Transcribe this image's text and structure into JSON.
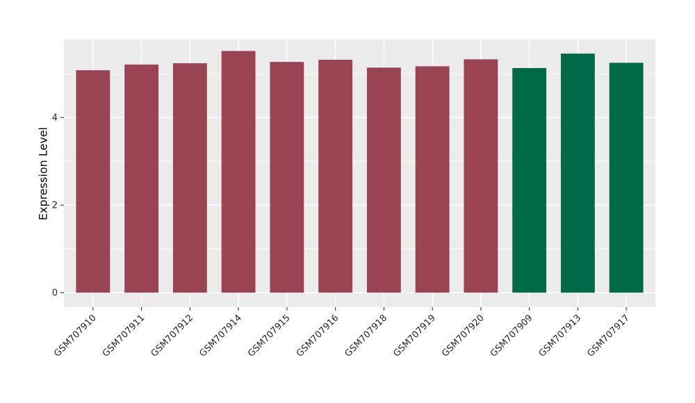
{
  "chart_data": {
    "type": "bar",
    "title": "",
    "xlabel": "",
    "ylabel": "Expression Level",
    "categories": [
      "GSM707910",
      "GSM707911",
      "GSM707912",
      "GSM707914",
      "GSM707915",
      "GSM707916",
      "GSM707918",
      "GSM707919",
      "GSM707920",
      "GSM707909",
      "GSM707913",
      "GSM707917"
    ],
    "values": [
      5.08,
      5.21,
      5.24,
      5.52,
      5.27,
      5.32,
      5.14,
      5.17,
      5.33,
      5.13,
      5.46,
      5.25
    ],
    "bar_colors": [
      "#9A4352",
      "#9A4352",
      "#9A4352",
      "#9A4352",
      "#9A4352",
      "#9A4352",
      "#9A4352",
      "#9A4352",
      "#9A4352",
      "#006948",
      "#006948",
      "#006948"
    ],
    "groups": [
      {
        "name": "red-group",
        "color": "#9A4352",
        "members": [
          "GSM707910",
          "GSM707911",
          "GSM707912",
          "GSM707914",
          "GSM707915",
          "GSM707916",
          "GSM707918",
          "GSM707919",
          "GSM707920"
        ]
      },
      {
        "name": "green-group",
        "color": "#006948",
        "members": [
          "GSM707909",
          "GSM707913",
          "GSM707917"
        ]
      }
    ],
    "y_ticks_major": [
      0,
      2,
      4
    ],
    "y_ticks_minor": [
      1,
      3,
      5
    ],
    "y_tick_labels": [
      "0",
      "2",
      "4"
    ],
    "ylim": [
      -0.33,
      5.78
    ],
    "bar_rel_width": 0.7,
    "x_tick_rotation_deg": 45,
    "grid": true,
    "legend": false,
    "style": {
      "figure_bg": "#FFFFFF",
      "panel_bg": "#EBEBEB",
      "grid_color": "#FFFFFF",
      "tick_mark_color": "#333333",
      "axis_text_color": "#262626",
      "axis_title_color": "#000000"
    }
  }
}
